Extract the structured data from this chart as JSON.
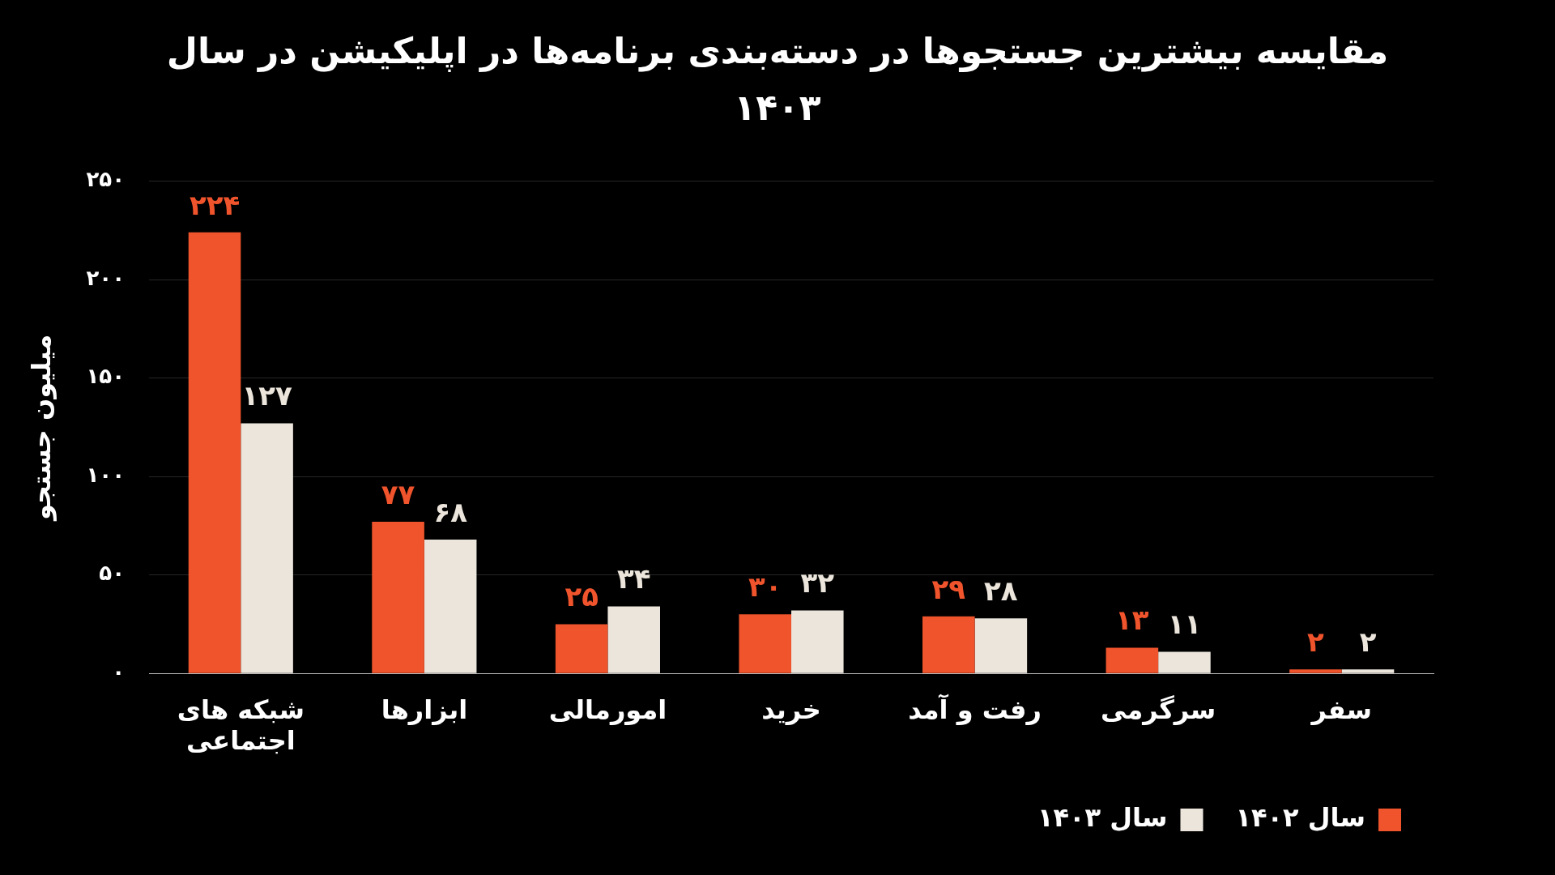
{
  "chart_data": {
    "type": "bar",
    "title": "مقایسه بیشترین جستجوها در دسته‌بندی برنامه‌ها در اپلیکیشن در سال ۱۴۰۳",
    "ylabel": "میلیون جستجو",
    "categories": [
      "شبکه های اجتماعی",
      "ابزارها",
      "امورمالی",
      "خرید",
      "رفت و آمد",
      "سرگرمی",
      "سفر"
    ],
    "series": [
      {
        "name": "سال ۱۴۰۲",
        "color": "#f0542c",
        "values": [
          224,
          77,
          25,
          30,
          29,
          13,
          2
        ],
        "value_labels": [
          "۲۲۴",
          "۷۷",
          "۲۵",
          "۳۰",
          "۲۹",
          "۱۳",
          "۲"
        ]
      },
      {
        "name": "سال ۱۴۰۳",
        "color": "#ebe5dc",
        "values": [
          127,
          68,
          34,
          32,
          28,
          11,
          2
        ],
        "value_labels": [
          "۱۲۷",
          "۶۸",
          "۳۴",
          "۳۲",
          "۲۸",
          "۱۱",
          "۲"
        ]
      }
    ],
    "ylim": [
      0,
      250
    ],
    "yticks": [
      {
        "value": 0,
        "label": "۰"
      },
      {
        "value": 50,
        "label": "۵۰"
      },
      {
        "value": 100,
        "label": "۱۰۰"
      },
      {
        "value": 150,
        "label": "۱۵۰"
      },
      {
        "value": 200,
        "label": "۲۰۰"
      },
      {
        "value": 250,
        "label": "۲۵۰"
      }
    ],
    "grid": "y",
    "legend": "bottom right"
  }
}
